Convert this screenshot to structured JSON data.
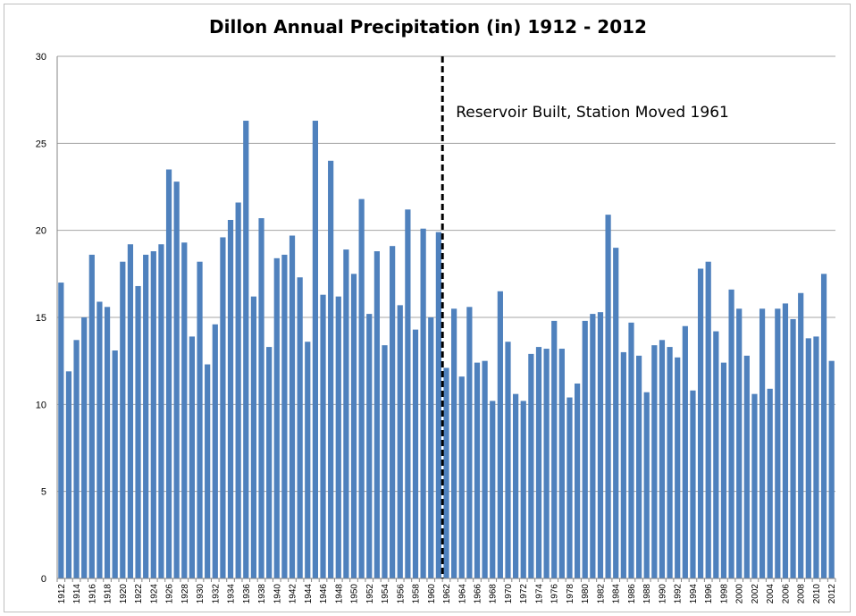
{
  "chart_data": {
    "type": "bar",
    "title": "Dillon Annual Precipitation (in) 1912 - 2012",
    "xlabel": "",
    "ylabel": "",
    "ylim": [
      0,
      30
    ],
    "yticks": [
      0,
      5,
      10,
      15,
      20,
      25,
      30
    ],
    "grid": true,
    "bar_color": "#4f81bd",
    "x_tick_labels": [
      "1912",
      "1914",
      "1916",
      "1918",
      "1920",
      "1922",
      "1924",
      "1926",
      "1928",
      "1930",
      "1932",
      "1934",
      "1936",
      "1938",
      "1940",
      "1942",
      "1944",
      "1946",
      "1948",
      "1950",
      "1952",
      "1954",
      "1956",
      "1958",
      "1960",
      "1962",
      "1964",
      "1966",
      "1968",
      "1970",
      "1972",
      "1974",
      "1976",
      "1978",
      "1980",
      "1982",
      "1984",
      "1986",
      "1988",
      "1990",
      "1992",
      "1994",
      "1996",
      "1998",
      "2000",
      "2002",
      "2004",
      "2006",
      "2008",
      "2010",
      "2012"
    ],
    "years": [
      1912,
      1913,
      1914,
      1915,
      1916,
      1917,
      1918,
      1919,
      1920,
      1921,
      1922,
      1923,
      1924,
      1925,
      1926,
      1927,
      1928,
      1929,
      1930,
      1931,
      1932,
      1933,
      1934,
      1935,
      1936,
      1937,
      1938,
      1939,
      1940,
      1941,
      1942,
      1943,
      1944,
      1945,
      1946,
      1947,
      1948,
      1949,
      1950,
      1951,
      1952,
      1953,
      1954,
      1955,
      1956,
      1957,
      1958,
      1959,
      1960,
      1961,
      1962,
      1963,
      1964,
      1965,
      1966,
      1967,
      1968,
      1969,
      1970,
      1971,
      1972,
      1973,
      1974,
      1975,
      1976,
      1977,
      1978,
      1979,
      1980,
      1981,
      1982,
      1983,
      1984,
      1985,
      1986,
      1987,
      1988,
      1989,
      1990,
      1991,
      1992,
      1993,
      1994,
      1995,
      1996,
      1997,
      1998,
      1999,
      2000,
      2001,
      2002,
      2003,
      2004,
      2005,
      2006,
      2007,
      2008,
      2009,
      2010,
      2011,
      2012
    ],
    "values": [
      17.0,
      11.9,
      13.7,
      15.0,
      18.6,
      15.9,
      15.6,
      13.1,
      18.2,
      19.2,
      16.8,
      18.6,
      18.8,
      19.2,
      23.5,
      22.8,
      19.3,
      13.9,
      18.2,
      12.3,
      14.6,
      19.6,
      20.6,
      21.6,
      26.3,
      16.2,
      20.7,
      13.3,
      18.4,
      18.6,
      19.7,
      17.3,
      13.6,
      26.3,
      16.3,
      24.0,
      16.2,
      18.9,
      17.5,
      21.8,
      15.2,
      18.8,
      13.4,
      19.1,
      15.7,
      21.2,
      14.3,
      20.1,
      15.0,
      19.9,
      12.1,
      15.5,
      11.6,
      15.6,
      12.4,
      12.5,
      10.2,
      16.5,
      13.6,
      10.6,
      10.2,
      12.9,
      13.3,
      13.2,
      14.8,
      13.2,
      10.4,
      11.2,
      14.8,
      15.2,
      15.3,
      20.9,
      19.0,
      13.0,
      14.7,
      12.8,
      10.7,
      13.4,
      13.7,
      13.3,
      12.7,
      14.5,
      10.8,
      17.8,
      18.2,
      14.2,
      12.4,
      16.6,
      15.5,
      12.8,
      10.6,
      15.5,
      10.9,
      15.5,
      15.8,
      14.9,
      16.4,
      13.8,
      13.9,
      17.5,
      12.5
    ],
    "annotations": [
      {
        "text": "Reservoir Built, Station Moved 1961",
        "at_year": 1961,
        "style": "dashed-vertical-line"
      }
    ]
  }
}
